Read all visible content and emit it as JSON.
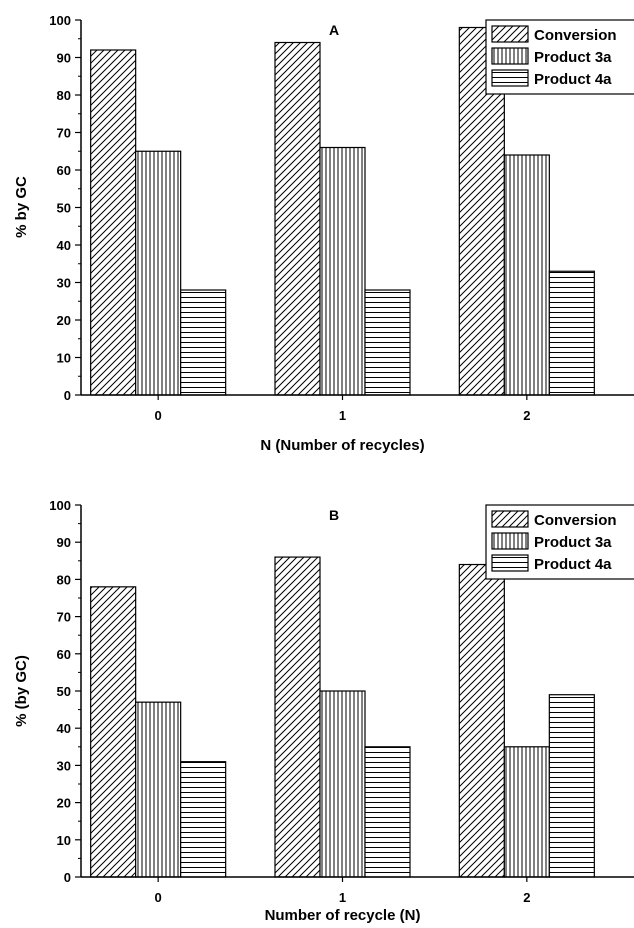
{
  "chart_data": [
    {
      "type": "bar",
      "title": "A",
      "xlabel": "N (Number of recycles)",
      "ylabel": "% by GC",
      "ylim": [
        0,
        100
      ],
      "yticks": [
        0,
        10,
        20,
        30,
        40,
        50,
        60,
        70,
        80,
        90,
        100
      ],
      "categories": [
        "0",
        "1",
        "2"
      ],
      "legend_position": "top-right",
      "series": [
        {
          "name": "Conversion",
          "pattern": "diagonal-hatch",
          "values": [
            92,
            94,
            98
          ]
        },
        {
          "name": "Product 3a",
          "pattern": "vertical-lines",
          "values": [
            65,
            66,
            64
          ]
        },
        {
          "name": "Product 4a",
          "pattern": "horizontal-lines",
          "values": [
            28,
            28,
            33
          ]
        }
      ]
    },
    {
      "type": "bar",
      "title": "B",
      "xlabel": "Number of recycle (N)",
      "ylabel": "% (by GC)",
      "ylim": [
        0,
        100
      ],
      "yticks": [
        0,
        10,
        20,
        30,
        40,
        50,
        60,
        70,
        80,
        90,
        100
      ],
      "categories": [
        "0",
        "1",
        "2"
      ],
      "legend_position": "top-right",
      "series": [
        {
          "name": "Conversion",
          "pattern": "diagonal-hatch",
          "values": [
            78,
            86,
            84
          ]
        },
        {
          "name": "Product 3a",
          "pattern": "vertical-lines",
          "values": [
            47,
            50,
            35
          ]
        },
        {
          "name": "Product 4a",
          "pattern": "horizontal-lines",
          "values": [
            31,
            35,
            49
          ]
        }
      ]
    }
  ]
}
